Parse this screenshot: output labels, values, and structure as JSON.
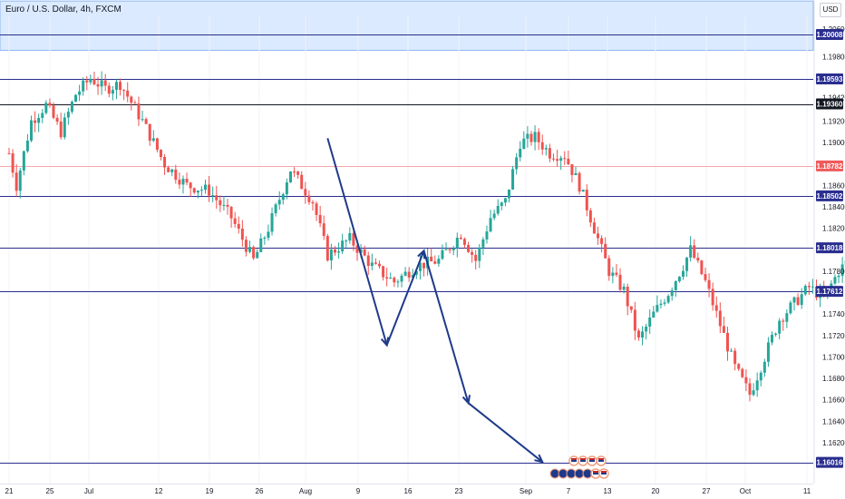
{
  "header": {
    "symbol_title": "Euro / U.S. Dollar, 4h, FXCM",
    "currency_badge": "USD"
  },
  "colors": {
    "up": "#26a69a",
    "down": "#ef5350",
    "level_line": "#2a2e8f",
    "black_line": "#131722",
    "zone_fill": "#dbeafe",
    "zone_border": "#90b8f0",
    "arrow": "#1e3a8a",
    "current_price": "#f4a9a9",
    "current_tag": "#f05a5a",
    "axis_text": "#131722",
    "grid": "#f0f3fa"
  },
  "chart_data": {
    "type": "candlestick",
    "y_axis": {
      "range": [
        1.5992,
        1.2012
      ],
      "tick_labels": [
        "1.20600",
        "1.19800",
        "1.19420",
        "1.19200",
        "1.19000",
        "1.18600",
        "1.18400",
        "1.18200",
        "1.17800",
        "1.17400",
        "1.17200",
        "1.17000",
        "1.16800",
        "1.16600",
        "1.16400",
        "1.16200"
      ],
      "tick_values": [
        1.2006,
        1.198,
        1.1942,
        1.192,
        1.19,
        1.186,
        1.184,
        1.182,
        1.178,
        1.174,
        1.172,
        1.17,
        1.168,
        1.166,
        1.164,
        1.162
      ]
    },
    "x_axis": {
      "tick_labels": [
        "21",
        "25",
        "Jul",
        "12",
        "19",
        "26",
        "Aug",
        "9",
        "16",
        "23",
        "Sep",
        "7",
        "13",
        "20",
        "27",
        "Oct",
        "11"
      ]
    },
    "horizontal_levels": [
      {
        "price": "1.20008",
        "value": 1.20008,
        "style": "level"
      },
      {
        "price": "1.19593",
        "value": 1.19593,
        "style": "level"
      },
      {
        "price": "1.19360",
        "value": 1.1936,
        "style": "black"
      },
      {
        "price": "1.18502",
        "value": 1.18502,
        "style": "level"
      },
      {
        "price": "1.18018",
        "value": 1.18018,
        "style": "level"
      },
      {
        "price": "1.17612",
        "value": 1.17612,
        "style": "level"
      },
      {
        "price": "1.16016",
        "value": 1.16016,
        "style": "level"
      }
    ],
    "zone": {
      "top": 1.2032,
      "bottom": 1.1986
    },
    "current_price": {
      "label": "1.18782",
      "value": 1.18782
    },
    "path": [
      {
        "date": "Aug 3",
        "price": 1.1904
      },
      {
        "date": "Aug 11",
        "price": 1.1711
      },
      {
        "date": "Aug 16",
        "price": 1.1799
      },
      {
        "date": "Aug 22",
        "price": 1.1657
      },
      {
        "date": "Sep 1",
        "price": 1.1602
      }
    ],
    "events": {
      "row1": [
        "flag",
        "flag",
        "flag",
        "flag"
      ],
      "row2": [
        "circle",
        "circle",
        "circle",
        "circle",
        "circle",
        "flag",
        "flag"
      ]
    }
  }
}
